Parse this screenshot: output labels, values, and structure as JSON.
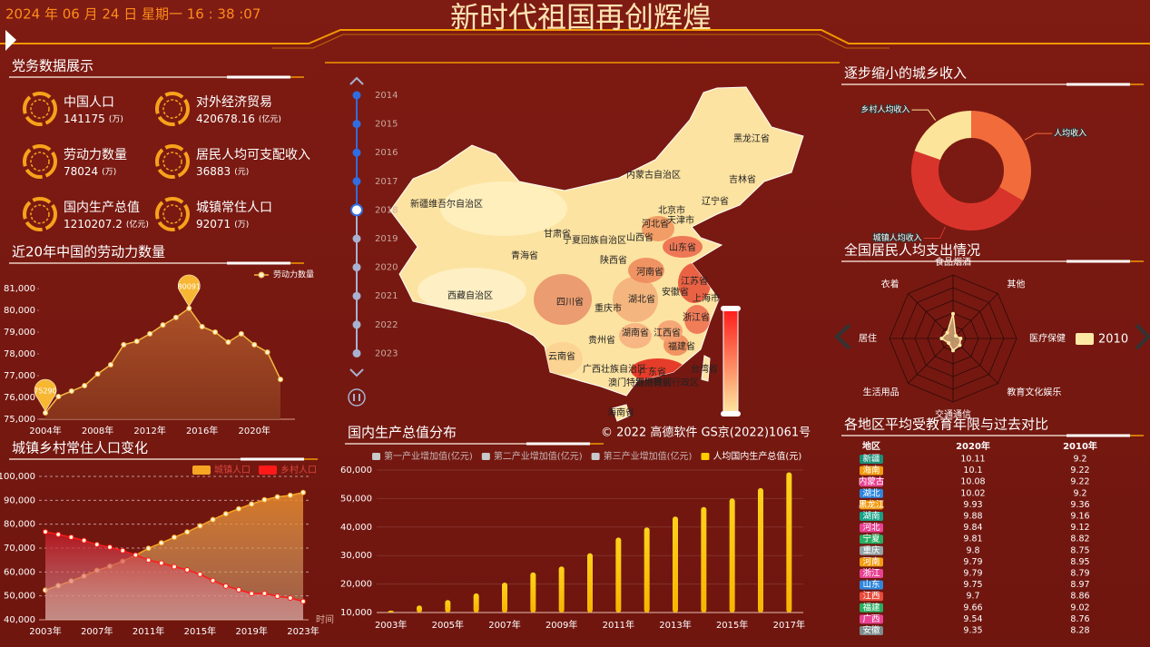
{
  "header": {
    "datetime": "2024 年 06 月 24 日 星期一 16 : 38 :07",
    "title": "新时代祖国再创辉煌"
  },
  "kpi": {
    "title": "党务数据展示",
    "items": [
      {
        "label": "中国人口",
        "value": 141175,
        "unit": "(万)"
      },
      {
        "label": "对外经济贸易",
        "value": 420678.16,
        "unit": "(亿元)"
      },
      {
        "label": "劳动力数量",
        "value": 78024,
        "unit": "(万)"
      },
      {
        "label": "居民人均可支配收入",
        "value": 36883,
        "unit": "(元)"
      },
      {
        "label": "国内生产总值",
        "value": 1210207.2,
        "unit": "(亿元)"
      },
      {
        "label": "城镇常住人口",
        "value": 92071,
        "unit": "(万)"
      }
    ]
  },
  "map": {
    "regions": [
      "黑龙江省",
      "内蒙古自治区",
      "吉林省",
      "辽宁省",
      "新疆维吾尔自治区",
      "北京市",
      "天津市",
      "河北省",
      "甘肃省",
      "宁夏回族自治区",
      "山西省",
      "山东省",
      "青海省",
      "陕西省",
      "河南省",
      "江苏省",
      "西藏自治区",
      "四川省",
      "重庆市",
      "湖北省",
      "安徽省",
      "上海市",
      "浙江省",
      "湖南省",
      "江西省",
      "贵州省",
      "云南省",
      "福建省",
      "广西壮族自治区",
      "广东省",
      "台湾省",
      "香港特别行政区",
      "澳门特别行政区",
      "海南省"
    ],
    "timeline": [
      2014,
      2015,
      2016,
      2017,
      2018,
      2019,
      2020,
      2021,
      2022,
      2023
    ],
    "current_index": 4,
    "copyright": "© 2022 高德软件 GS京(2022)1061号"
  },
  "chart_data": [
    {
      "type": "line",
      "title": "近20年中国的劳动力数量",
      "area": true,
      "grid": false,
      "mark_extremes": true,
      "categories": [
        "2004年",
        null,
        null,
        null,
        "2008年",
        null,
        null,
        null,
        "2012年",
        null,
        null,
        null,
        "2016年",
        null,
        null,
        null,
        "2020年",
        null,
        null
      ],
      "series": [
        {
          "name": "劳动力数量",
          "color": "#f4b942",
          "values": [
            75290,
            76040,
            76290,
            76540,
            77080,
            77500,
            78420,
            78580,
            78920,
            79330,
            79670,
            80091,
            79250,
            79000,
            78540,
            78920,
            78420,
            78080,
            76830
          ]
        }
      ],
      "ylim": [
        75000,
        81000
      ],
      "yticks": [
        {
          "value": 75000,
          "label": "75,000"
        },
        {
          "value": 76000,
          "label": "76,000"
        },
        {
          "value": 77000,
          "label": "77,000"
        },
        {
          "value": 78000,
          "label": "78,000"
        },
        {
          "value": 79000,
          "label": "79,000"
        },
        {
          "value": 80000,
          "label": "80,000"
        },
        {
          "value": 81000,
          "label": "81,000"
        }
      ]
    },
    {
      "type": "line",
      "title": "城镇乡村常住人口变化",
      "area": true,
      "grid": true,
      "x_name": "时间",
      "categories": [
        "2003年",
        null,
        null,
        null,
        "2007年",
        null,
        null,
        null,
        "2011年",
        null,
        null,
        null,
        "2015年",
        null,
        null,
        null,
        "2019年",
        null,
        null,
        null,
        "2023年"
      ],
      "series": [
        {
          "name": "城镇人口",
          "color": "#f6a623",
          "values": [
            52376,
            54283,
            56212,
            58288,
            60633,
            62403,
            64512,
            66978,
            69927,
            72175,
            74502,
            76738,
            79302,
            81924,
            84343,
            86433,
            88426,
            90220,
            91425,
            92071,
            93267
          ]
        },
        {
          "name": "乡村人口",
          "color": "#ff1a1a",
          "values": [
            76851,
            75705,
            74544,
            73160,
            71496,
            70399,
            68938,
            67113,
            64989,
            63747,
            62224,
            60908,
            59024,
            56401,
            54108,
            52576,
            50979,
            50992,
            49835,
            49104,
            47700
          ]
        }
      ],
      "ylim": [
        40000,
        100000
      ],
      "yticks": [
        {
          "value": 40000,
          "label": "40,000"
        },
        {
          "value": 50000,
          "label": "50,000"
        },
        {
          "value": 60000,
          "label": "60,000"
        },
        {
          "value": 70000,
          "label": "70,000"
        },
        {
          "value": 80000,
          "label": "80,000"
        },
        {
          "value": 90000,
          "label": "90,000"
        },
        {
          "value": 100000,
          "label": "100,000"
        }
      ]
    },
    {
      "type": "bar",
      "title": "国内生产总值分布",
      "grid": true,
      "legend_inactive": [
        "第一产业增加值(亿元)",
        "第二产业增加值(亿元)",
        "第三产业增加值(亿元)"
      ],
      "categories": [
        "2003年",
        null,
        "2005年",
        null,
        "2007年",
        null,
        "2009年",
        null,
        "2011年",
        null,
        "2013年",
        null,
        "2015年",
        null,
        "2017年"
      ],
      "series": [
        {
          "name": "人均国内生产总值(元)",
          "color": "#ffcc00",
          "values": [
            10666,
            12487,
            14368,
            16738,
            20494,
            24100,
            26180,
            30808,
            36302,
            39874,
            43684,
            47005,
            50028,
            53680,
            59201
          ]
        }
      ],
      "ylim": [
        10000,
        60000
      ],
      "yticks": [
        {
          "value": 10000,
          "label": "10,000"
        },
        {
          "value": 20000,
          "label": "20,000"
        },
        {
          "value": 30000,
          "label": "30,000"
        },
        {
          "value": 40000,
          "label": "40,000"
        },
        {
          "value": 50000,
          "label": "50,000"
        },
        {
          "value": 60000,
          "label": "60,000"
        }
      ]
    },
    {
      "type": "pie",
      "title": "逐步缩小的城乡收入",
      "donut": true,
      "categories": [
        "人均收入",
        "城镇人均收入",
        "乡村人均收入"
      ],
      "values": [
        36883,
        51821,
        21691
      ],
      "colors": [
        "#f26b3a",
        "#d9342b",
        "#fde49b"
      ]
    },
    {
      "type": "radar",
      "title": "全国居民人均支出情况",
      "indicators": [
        "食品烟酒",
        "衣着",
        "居住",
        "生活用品",
        "交通通信",
        "教育文化娱乐",
        "医疗保健",
        "其他"
      ],
      "rlim": [
        0,
        10000
      ],
      "series": [
        {
          "name": "2010",
          "color": "#fde9a6",
          "values": [
            3900,
            1300,
            1800,
            1000,
            1900,
            1500,
            1200,
            600
          ]
        }
      ]
    }
  ],
  "table": {
    "title": "各地区平均受教育年限与过去对比",
    "columns": [
      "地区",
      "2020年",
      "2010年"
    ],
    "rows": [
      [
        "新疆",
        10.11,
        9.2
      ],
      [
        "海南",
        10.1,
        9.22
      ],
      [
        "内蒙古",
        10.08,
        9.22
      ],
      [
        "湖北",
        10.02,
        9.2
      ],
      [
        "黑龙江",
        9.93,
        9.36
      ],
      [
        "湖南",
        9.88,
        9.16
      ],
      [
        "河北",
        9.84,
        9.12
      ],
      [
        "宁夏",
        9.81,
        8.82
      ],
      [
        "重庆",
        9.8,
        8.75
      ],
      [
        "河南",
        9.79,
        8.95
      ],
      [
        "浙江",
        9.79,
        8.79
      ],
      [
        "山东",
        9.75,
        8.97
      ],
      [
        "江西",
        9.7,
        8.86
      ],
      [
        "福建",
        9.66,
        9.02
      ],
      [
        "广西",
        9.54,
        8.76
      ],
      [
        "安徽",
        9.35,
        8.28
      ]
    ]
  }
}
